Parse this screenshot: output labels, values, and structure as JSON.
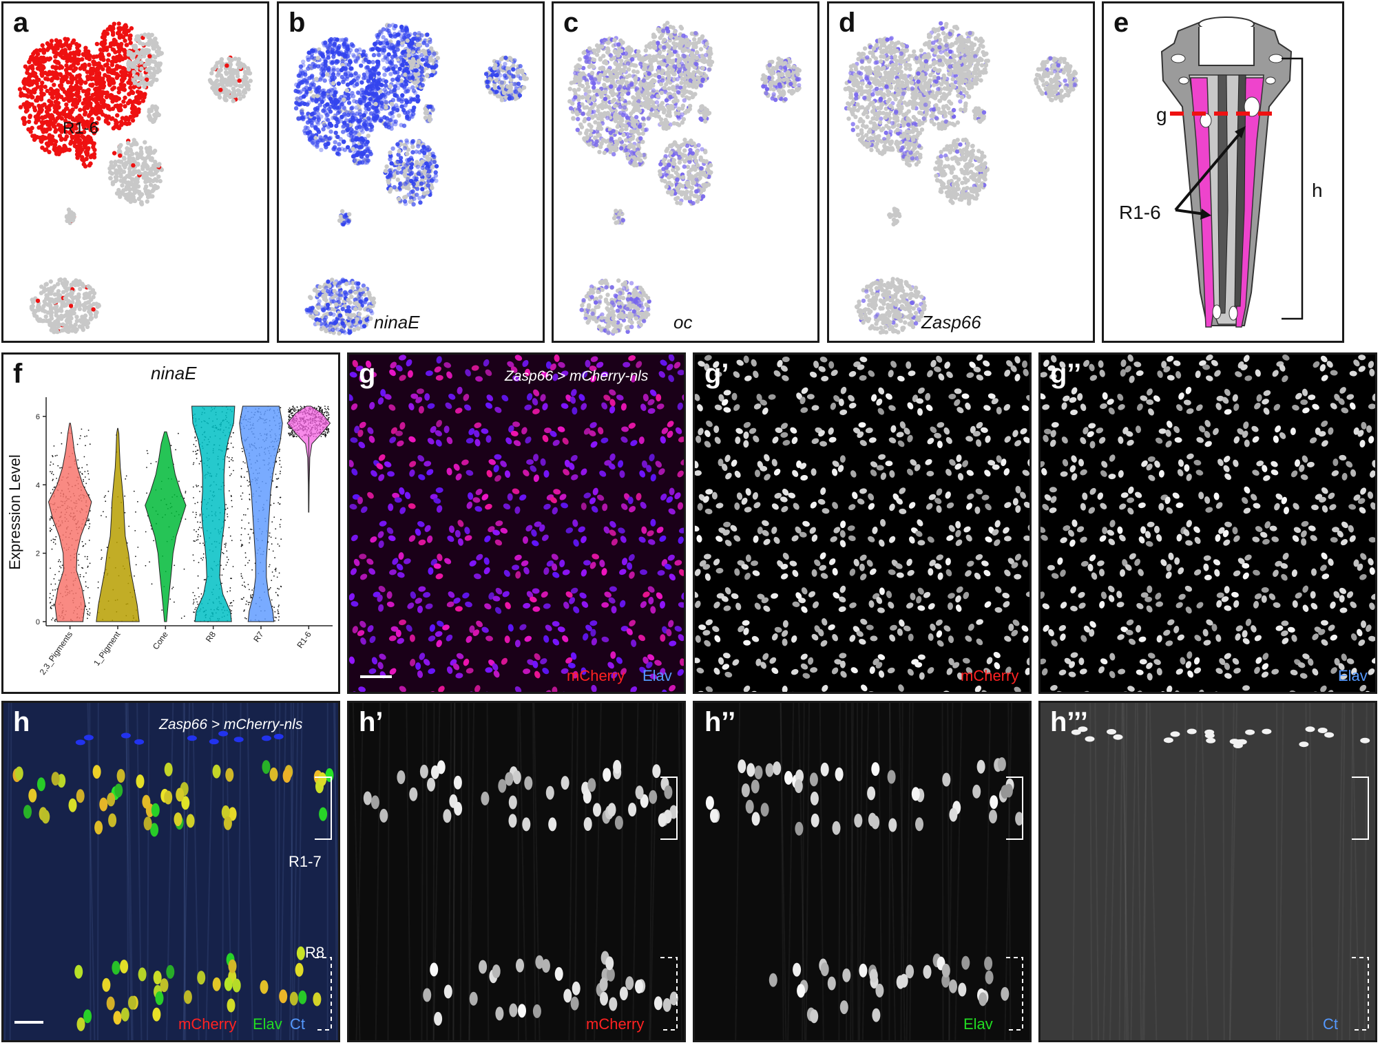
{
  "panels": {
    "a": {
      "letter": "a",
      "cluster_label": "R1-6"
    },
    "b": {
      "letter": "b",
      "gene": "ninaE"
    },
    "c": {
      "letter": "c",
      "gene": "oc"
    },
    "d": {
      "letter": "d",
      "gene": "Zasp66"
    },
    "e": {
      "letter": "e",
      "section_g": "g",
      "section_h": "h",
      "label_r16": "R1-6"
    },
    "f": {
      "letter": "f",
      "title": "ninaE"
    },
    "g": {
      "letter": "g",
      "genotype": "Zasp66 > mCherry-nls",
      "ch_mcherry": "mCherry",
      "ch_elav": "Elav"
    },
    "g1": {
      "letter": "g’",
      "ch_mcherry": "mCherry"
    },
    "g2": {
      "letter": "g’’",
      "ch_elav": "Elav"
    },
    "h": {
      "letter": "h",
      "genotype": "Zasp66 > mCherry-nls",
      "label_r17": "R1-7",
      "label_r8": "R8",
      "ch_mcherry": "mCherry",
      "ch_elav": "Elav",
      "ch_ct": "Ct"
    },
    "h1": {
      "letter": "h’",
      "ch_mcherry": "mCherry"
    },
    "h2": {
      "letter": "h’’",
      "ch_elav": "Elav"
    },
    "h3": {
      "letter": "h’’’",
      "ch_ct": "Ct"
    }
  },
  "colors": {
    "red": "#ee1111",
    "blue": "#3344ee",
    "grey": "#c8c8c8",
    "magenta": "#ee44cc",
    "label_red": "#ff2222",
    "label_green": "#22dd22",
    "label_blue": "#5599ff"
  },
  "chart_data": {
    "type": "violin",
    "title": "ninaE",
    "ylabel": "Expression Level",
    "ylim": [
      0,
      6.4
    ],
    "yticks": [
      0,
      2,
      4,
      6
    ],
    "categories": [
      "2,3_Pigments",
      "1_Pigment",
      "Cone",
      "R8",
      "R7",
      "R1-6"
    ],
    "colors": [
      "#f8766d",
      "#b79f00",
      "#00ba38",
      "#00bfc4",
      "#619cff",
      "#f564e3"
    ],
    "profiles": [
      [
        [
          0,
          0.6
        ],
        [
          0.5,
          0.7
        ],
        [
          1,
          0.55
        ],
        [
          1.5,
          0.3
        ],
        [
          2,
          0.32
        ],
        [
          2.5,
          0.5
        ],
        [
          3,
          0.8
        ],
        [
          3.5,
          1.0
        ],
        [
          4,
          0.6
        ],
        [
          4.5,
          0.35
        ],
        [
          5,
          0.2
        ],
        [
          5.5,
          0.1
        ],
        [
          5.8,
          0.02
        ]
      ],
      [
        [
          0,
          1.0
        ],
        [
          0.5,
          0.9
        ],
        [
          1,
          0.75
        ],
        [
          1.5,
          0.6
        ],
        [
          2,
          0.5
        ],
        [
          2.5,
          0.35
        ],
        [
          3,
          0.3
        ],
        [
          3.5,
          0.27
        ],
        [
          4,
          0.2
        ],
        [
          4.5,
          0.12
        ],
        [
          5,
          0.08
        ],
        [
          5.5,
          0.05
        ],
        [
          5.65,
          0.01
        ]
      ],
      [
        [
          0,
          0.05
        ],
        [
          0.5,
          0.12
        ],
        [
          1,
          0.2
        ],
        [
          1.5,
          0.28
        ],
        [
          2,
          0.35
        ],
        [
          2.5,
          0.5
        ],
        [
          3,
          0.75
        ],
        [
          3.4,
          0.95
        ],
        [
          3.8,
          0.7
        ],
        [
          4.3,
          0.45
        ],
        [
          4.8,
          0.3
        ],
        [
          5.2,
          0.2
        ],
        [
          5.55,
          0.05
        ]
      ],
      [
        [
          0,
          0.85
        ],
        [
          0.3,
          0.8
        ],
        [
          0.8,
          0.45
        ],
        [
          1.3,
          0.3
        ],
        [
          1.8,
          0.33
        ],
        [
          2.3,
          0.4
        ],
        [
          2.8,
          0.5
        ],
        [
          3.3,
          0.55
        ],
        [
          3.8,
          0.5
        ],
        [
          4.3,
          0.5
        ],
        [
          4.8,
          0.55
        ],
        [
          5.3,
          0.7
        ],
        [
          5.8,
          0.95
        ],
        [
          6.3,
          1.0
        ]
      ],
      [
        [
          0,
          0.6
        ],
        [
          0.3,
          0.55
        ],
        [
          0.8,
          0.35
        ],
        [
          1.3,
          0.25
        ],
        [
          1.8,
          0.25
        ],
        [
          2.3,
          0.3
        ],
        [
          2.8,
          0.35
        ],
        [
          3.3,
          0.4
        ],
        [
          3.8,
          0.45
        ],
        [
          4.3,
          0.55
        ],
        [
          4.8,
          0.7
        ],
        [
          5.3,
          0.9
        ],
        [
          5.8,
          1.0
        ],
        [
          6.3,
          0.85
        ]
      ],
      [
        [
          3.2,
          0.01
        ],
        [
          4,
          0.02
        ],
        [
          4.8,
          0.05
        ],
        [
          5.2,
          0.15
        ],
        [
          5.5,
          0.6
        ],
        [
          5.8,
          1.0
        ],
        [
          6.1,
          0.6
        ],
        [
          6.3,
          0.1
        ]
      ]
    ]
  }
}
